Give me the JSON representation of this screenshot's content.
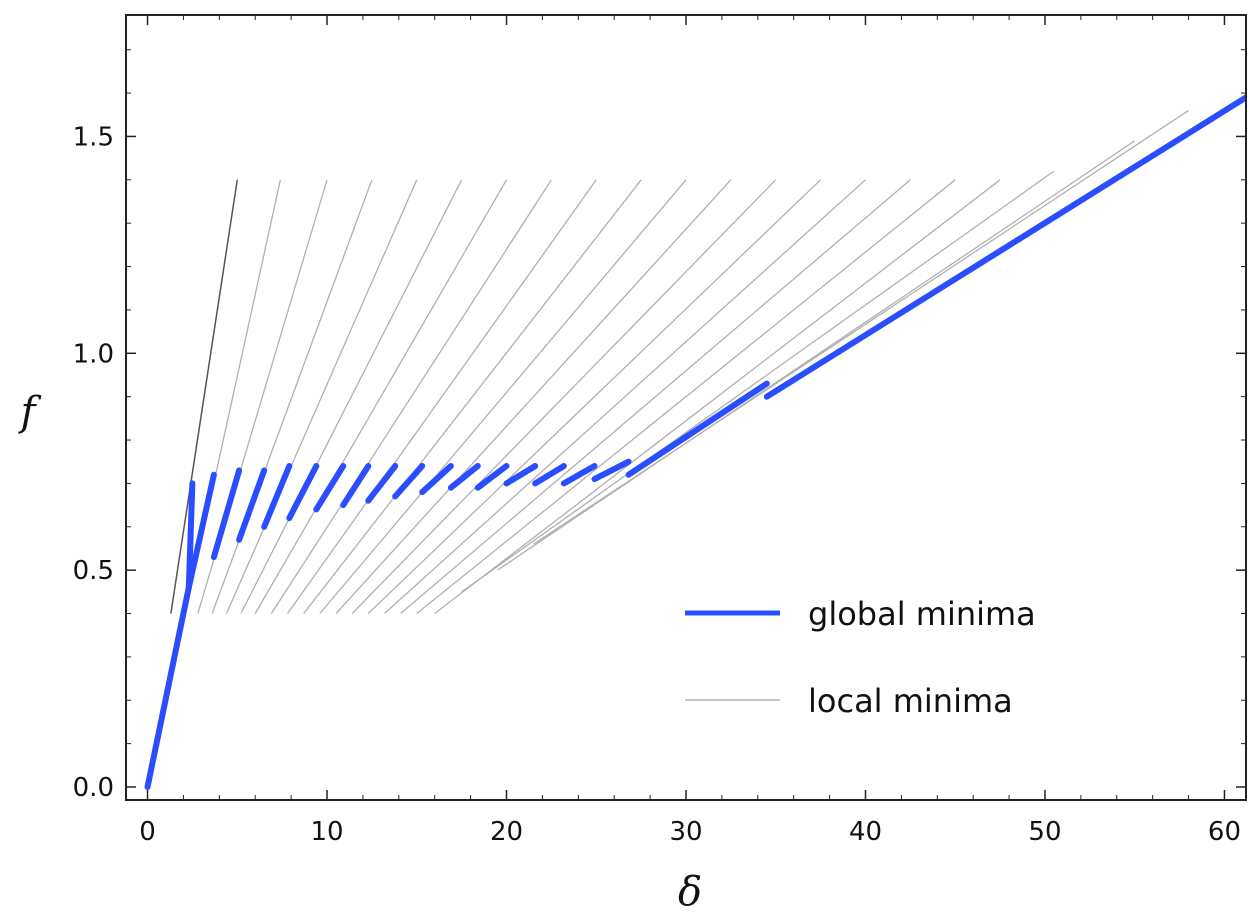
{
  "chart_data": {
    "type": "line",
    "title": "",
    "xlabel": "δ",
    "ylabel": "f",
    "xlim": [
      -1.2,
      61.2
    ],
    "ylim": [
      -0.03,
      1.78
    ],
    "x_ticks": [
      0,
      10,
      20,
      30,
      40,
      50,
      60
    ],
    "x_tick_labels": [
      "0",
      "10",
      "20",
      "30",
      "40",
      "50",
      "60"
    ],
    "y_ticks": [
      0.0,
      0.5,
      1.0,
      1.5
    ],
    "y_tick_labels": [
      "0.0",
      "0.5",
      "1.0",
      "1.5"
    ],
    "grid": false,
    "legend_position": "lower-right",
    "legend": [
      {
        "name": "global minima",
        "color": "#2a4dff"
      },
      {
        "name": "local minima",
        "color": "#b0b0b0"
      }
    ],
    "global_minima": {
      "name": "global minima",
      "color": "#2a4dff",
      "segments": [
        [
          [
            0.0,
            0.0
          ],
          [
            2.3,
            0.46
          ],
          [
            2.5,
            0.7
          ]
        ],
        [
          [
            2.3,
            0.46
          ],
          [
            3.7,
            0.72
          ]
        ],
        [
          [
            3.7,
            0.53
          ],
          [
            5.1,
            0.73
          ]
        ],
        [
          [
            5.1,
            0.57
          ],
          [
            6.5,
            0.73
          ]
        ],
        [
          [
            6.5,
            0.6
          ],
          [
            7.9,
            0.74
          ]
        ],
        [
          [
            7.9,
            0.62
          ],
          [
            9.4,
            0.74
          ]
        ],
        [
          [
            9.4,
            0.64
          ],
          [
            10.9,
            0.74
          ]
        ],
        [
          [
            10.9,
            0.65
          ],
          [
            12.3,
            0.74
          ]
        ],
        [
          [
            12.3,
            0.66
          ],
          [
            13.8,
            0.74
          ]
        ],
        [
          [
            13.8,
            0.67
          ],
          [
            15.3,
            0.74
          ]
        ],
        [
          [
            15.3,
            0.68
          ],
          [
            16.9,
            0.74
          ]
        ],
        [
          [
            16.9,
            0.69
          ],
          [
            18.4,
            0.74
          ]
        ],
        [
          [
            18.4,
            0.69
          ],
          [
            20.0,
            0.74
          ]
        ],
        [
          [
            20.0,
            0.7
          ],
          [
            21.6,
            0.74
          ]
        ],
        [
          [
            21.6,
            0.7
          ],
          [
            23.2,
            0.74
          ]
        ],
        [
          [
            23.2,
            0.7
          ],
          [
            24.9,
            0.74
          ]
        ],
        [
          [
            24.9,
            0.71
          ],
          [
            26.8,
            0.75
          ]
        ],
        [
          [
            26.8,
            0.72
          ],
          [
            34.5,
            0.93
          ]
        ],
        [
          [
            34.5,
            0.9
          ],
          [
            61.2,
            1.59
          ]
        ]
      ]
    },
    "local_minima": {
      "name": "local minima",
      "color": "#b0b0b0",
      "branches": [
        {
          "x_start": 1.3,
          "y_start": 0.4,
          "x_end": 5.0,
          "y_end": 1.4
        },
        {
          "x_start": 2.1,
          "y_start": 0.4,
          "x_end": 7.4,
          "y_end": 1.4
        },
        {
          "x_start": 2.8,
          "y_start": 0.4,
          "x_end": 10.0,
          "y_end": 1.4
        },
        {
          "x_start": 3.6,
          "y_start": 0.4,
          "x_end": 12.5,
          "y_end": 1.4
        },
        {
          "x_start": 4.4,
          "y_start": 0.4,
          "x_end": 15.0,
          "y_end": 1.4
        },
        {
          "x_start": 5.2,
          "y_start": 0.4,
          "x_end": 17.5,
          "y_end": 1.4
        },
        {
          "x_start": 6.0,
          "y_start": 0.4,
          "x_end": 20.0,
          "y_end": 1.4
        },
        {
          "x_start": 6.9,
          "y_start": 0.4,
          "x_end": 22.5,
          "y_end": 1.4
        },
        {
          "x_start": 7.8,
          "y_start": 0.4,
          "x_end": 25.0,
          "y_end": 1.4
        },
        {
          "x_start": 8.7,
          "y_start": 0.4,
          "x_end": 27.5,
          "y_end": 1.4
        },
        {
          "x_start": 9.6,
          "y_start": 0.4,
          "x_end": 30.0,
          "y_end": 1.4
        },
        {
          "x_start": 10.5,
          "y_start": 0.4,
          "x_end": 32.5,
          "y_end": 1.4
        },
        {
          "x_start": 11.4,
          "y_start": 0.4,
          "x_end": 35.0,
          "y_end": 1.4
        },
        {
          "x_start": 12.3,
          "y_start": 0.4,
          "x_end": 37.5,
          "y_end": 1.4
        },
        {
          "x_start": 13.2,
          "y_start": 0.4,
          "x_end": 40.0,
          "y_end": 1.4
        },
        {
          "x_start": 14.1,
          "y_start": 0.4,
          "x_end": 42.5,
          "y_end": 1.4
        },
        {
          "x_start": 15.0,
          "y_start": 0.4,
          "x_end": 45.0,
          "y_end": 1.4
        },
        {
          "x_start": 16.0,
          "y_start": 0.4,
          "x_end": 47.5,
          "y_end": 1.4
        },
        {
          "x_start": 17.5,
          "y_start": 0.45,
          "x_end": 50.5,
          "y_end": 1.42
        },
        {
          "x_start": 19.5,
          "y_start": 0.5,
          "x_end": 55.0,
          "y_end": 1.49
        },
        {
          "x_start": 21.5,
          "y_start": 0.56,
          "x_end": 58.0,
          "y_end": 1.56
        }
      ]
    }
  }
}
